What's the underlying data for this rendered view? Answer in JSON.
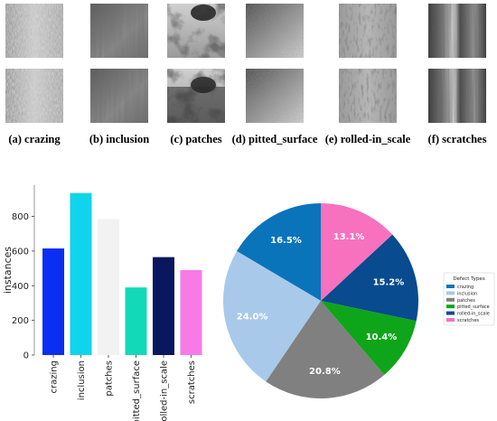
{
  "sample_panels": [
    {
      "caption": "(a) crazing",
      "texture": "crazing"
    },
    {
      "caption": "(b) inclusion",
      "texture": "inclusion"
    },
    {
      "caption": "(c) patches",
      "texture": "patches"
    },
    {
      "caption": "(d) pitted_surface",
      "texture": "pitted"
    },
    {
      "caption": "(e) rolled-in_scale",
      "texture": "rolled"
    },
    {
      "caption": "(f) scratches",
      "texture": "scratches"
    }
  ],
  "chart_data": [
    {
      "type": "bar",
      "categories": [
        "crazing",
        "inclusion",
        "patches",
        "pitted_surface",
        "rolled-in_scale",
        "scratches"
      ],
      "values": [
        615,
        935,
        785,
        390,
        565,
        490
      ],
      "colors": [
        "#0a2ff2",
        "#10d4ec",
        "#f2f2f2",
        "#12d9b8",
        "#08175e",
        "#f77ae8"
      ],
      "ylabel": "instances",
      "yticks": [
        0,
        200,
        400,
        600,
        800
      ],
      "ylim": [
        0,
        980
      ],
      "grid": false
    },
    {
      "type": "pie",
      "slices": [
        {
          "label": "crazing",
          "value": 16.5,
          "text": "16.5%",
          "color": "#0a74ba"
        },
        {
          "label": "inclusion",
          "value": 24.0,
          "text": "24.0%",
          "color": "#a9c9ea"
        },
        {
          "label": "patches",
          "value": 20.8,
          "text": "20.8%",
          "color": "#808080"
        },
        {
          "label": "pitted_surface",
          "value": 10.4,
          "text": "10.4%",
          "color": "#0ea51a"
        },
        {
          "label": "rolled-in_scale",
          "value": 15.2,
          "text": "15.2%",
          "color": "#084b8e"
        },
        {
          "label": "scratches",
          "value": 13.1,
          "text": "13.1%",
          "color": "#f771be"
        }
      ],
      "start_angle_deg": 90,
      "direction": "counterclockwise",
      "legend_title": "Defect Types",
      "legend_placement": "right"
    }
  ]
}
